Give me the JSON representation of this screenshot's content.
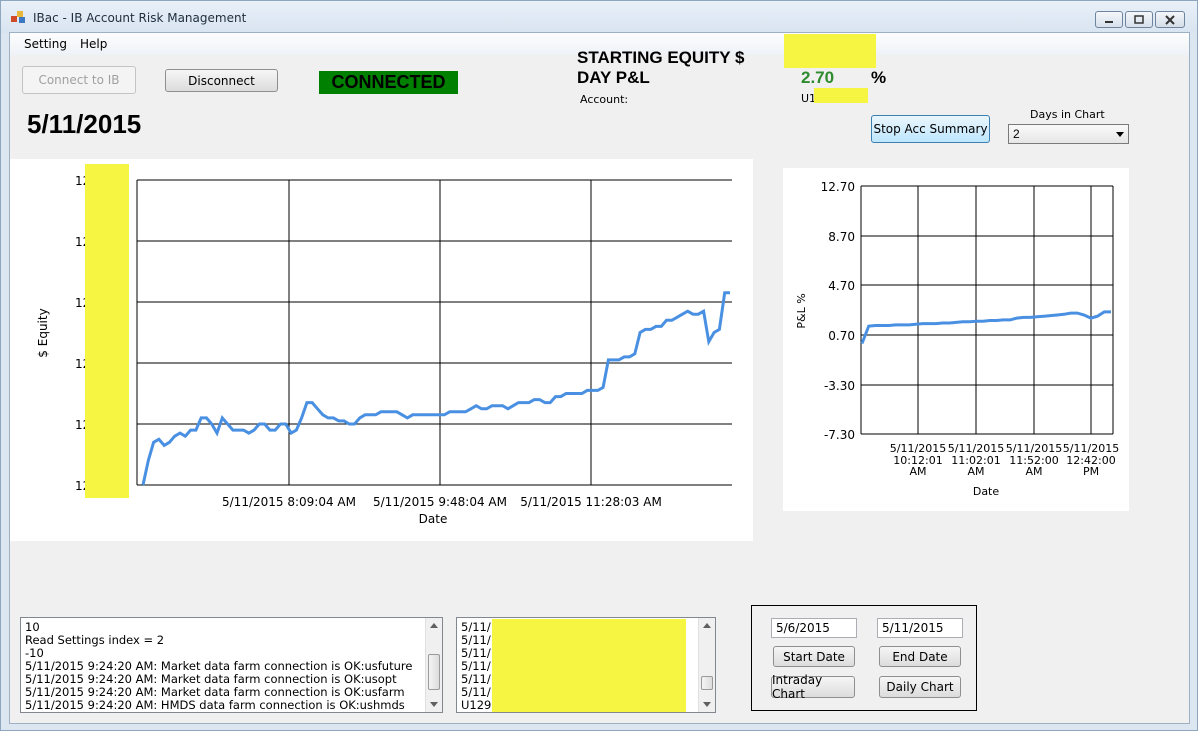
{
  "window": {
    "title": "IBac - IB Account Risk Management"
  },
  "menu": {
    "items": [
      "Setting",
      "Help"
    ]
  },
  "toolbar": {
    "connect_label": "Connect to IB",
    "disconnect_label": "Disconnect",
    "status": "CONNECTED",
    "status_color": "#008000",
    "stop_summary_label": "Stop Acc Summary"
  },
  "account": {
    "starting_equity_label": "STARTING EQUITY $",
    "day_pnl_label": "DAY P&L",
    "day_pnl_value": "2.70",
    "day_pnl_unit": "%",
    "day_pnl_color": "#2e8b2e",
    "account_label": "Account:",
    "account_id_visible": "U1"
  },
  "current_date": "5/11/2015",
  "days_in_chart": {
    "label": "Days in Chart",
    "value": "2"
  },
  "equity_chart": {
    "ylabel": "$ Equity",
    "xlabel": "Date",
    "y_tick_prefix": "12",
    "x_ticks": [
      "5/11/2015 8:09:04 AM",
      "5/11/2015 9:48:04 AM",
      "5/11/2015 11:28:03 AM"
    ],
    "line_color": "#4a90e2"
  },
  "pnl_chart": {
    "ylabel": "P&L %",
    "xlabel": "Date",
    "y_ticks": [
      "12.70",
      "8.70",
      "4.70",
      "0.70",
      "-3.30",
      "-7.30"
    ],
    "x_ticks": [
      [
        "5/11/2015",
        "10:12:01",
        "AM"
      ],
      [
        "5/11/2015",
        "11:02:01",
        "AM"
      ],
      [
        "5/11/2015",
        "11:52:00",
        "AM"
      ],
      [
        "5/11/2015",
        "12:42:00",
        "PM"
      ]
    ],
    "line_color": "#4a90e2"
  },
  "chart_data": [
    {
      "type": "line",
      "title": "",
      "xlabel": "Date",
      "ylabel": "$ Equity",
      "x_ticks": [
        "5/11/2015 8:09:04 AM",
        "5/11/2015 9:48:04 AM",
        "5/11/2015 11:28:03 AM"
      ],
      "note_redacted_y": true,
      "series": [
        {
          "values": [
            0.0,
            0.08,
            0.14,
            0.15,
            0.13,
            0.14,
            0.16,
            0.17,
            0.16,
            0.18,
            0.18,
            0.22,
            0.22,
            0.2,
            0.17,
            0.22,
            0.2,
            0.18,
            0.18,
            0.18,
            0.17,
            0.18,
            0.2,
            0.2,
            0.18,
            0.18,
            0.2,
            0.2,
            0.17,
            0.18,
            0.22,
            0.27,
            0.27,
            0.25,
            0.23,
            0.22,
            0.22,
            0.21,
            0.21,
            0.2,
            0.2,
            0.22,
            0.23,
            0.23,
            0.23,
            0.24,
            0.24,
            0.24,
            0.24,
            0.23,
            0.22,
            0.23,
            0.23,
            0.23,
            0.23,
            0.23,
            0.23,
            0.23,
            0.24,
            0.24,
            0.24,
            0.24,
            0.25,
            0.26,
            0.25,
            0.25,
            0.26,
            0.26,
            0.26,
            0.25,
            0.26,
            0.27,
            0.27,
            0.27,
            0.28,
            0.28,
            0.27,
            0.27,
            0.29,
            0.29,
            0.3,
            0.3,
            0.3,
            0.3,
            0.31,
            0.31,
            0.31,
            0.32,
            0.41,
            0.41,
            0.41,
            0.42,
            0.42,
            0.43,
            0.5,
            0.51,
            0.51,
            0.52,
            0.52,
            0.54,
            0.54,
            0.55,
            0.56,
            0.57,
            0.56,
            0.56,
            0.57,
            0.47,
            0.5,
            0.51,
            0.63,
            0.63
          ]
        }
      ]
    },
    {
      "type": "line",
      "title": "",
      "xlabel": "Date",
      "ylabel": "P&L %",
      "ylim": [
        -7.3,
        12.7
      ],
      "x_ticks": [
        "5/11/2015 10:12:01 AM",
        "5/11/2015 11:02:01 AM",
        "5/11/2015 11:52:00 AM",
        "5/11/2015 12:42:00 PM"
      ],
      "series": [
        {
          "values": [
            0.0,
            1.4,
            1.45,
            1.45,
            1.45,
            1.5,
            1.5,
            1.5,
            1.55,
            1.6,
            1.6,
            1.6,
            1.65,
            1.65,
            1.7,
            1.75,
            1.75,
            1.8,
            1.8,
            1.85,
            1.85,
            1.9,
            1.9,
            2.05,
            2.1,
            2.1,
            2.15,
            2.2,
            2.25,
            2.3,
            2.35,
            2.45,
            2.45,
            2.3,
            2.05,
            2.2,
            2.55,
            2.55
          ]
        }
      ]
    }
  ],
  "log_panel": {
    "lines": [
      "10",
      "Read Settings index = 2",
      "-10",
      "5/11/2015 9:24:20 AM:  Market data farm connection is OK:usfuture",
      "5/11/2015 9:24:20 AM:  Market data farm connection is OK:usopt",
      "5/11/2015 9:24:20 AM:  Market data farm connection is OK:usfarm",
      "5/11/2015 9:24:20 AM:  HMDS data farm connection is OK:ushmds"
    ]
  },
  "account_list": {
    "lines": [
      "5/11/",
      "5/11/",
      "5/11/",
      "5/11/",
      "5/11/",
      "5/11/",
      "U129"
    ]
  },
  "date_range": {
    "start_value": "5/6/2015",
    "end_value": "5/11/2015",
    "start_button": "Start Date",
    "end_button": "End Date",
    "intraday_button": "Intraday Chart",
    "daily_button": "Daily Chart"
  },
  "redaction_color": "#f5f542"
}
